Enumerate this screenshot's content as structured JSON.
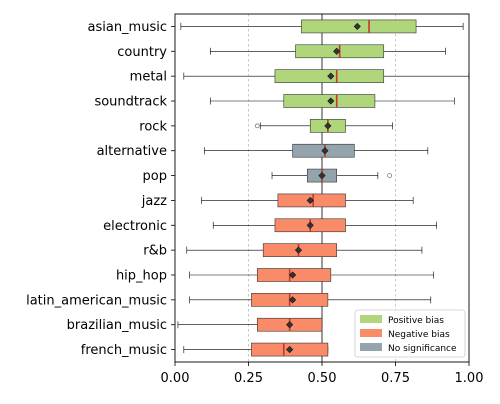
{
  "chart_data": {
    "type": "boxplot",
    "orientation": "horizontal",
    "categories": [
      "asian_music",
      "country",
      "metal",
      "soundtrack",
      "rock",
      "alternative",
      "pop",
      "jazz",
      "electronic",
      "r&b",
      "hip_hop",
      "latin_american_music",
      "brazilian_music",
      "french_music"
    ],
    "boxes": [
      {
        "category": "asian_music",
        "whisker_low": 0.02,
        "q1": 0.43,
        "median": 0.66,
        "q3": 0.82,
        "whisker_high": 0.98,
        "mean": 0.62,
        "group": "positive",
        "outliers": []
      },
      {
        "category": "country",
        "whisker_low": 0.12,
        "q1": 0.41,
        "median": 0.56,
        "q3": 0.71,
        "whisker_high": 0.92,
        "mean": 0.55,
        "group": "positive",
        "outliers": []
      },
      {
        "category": "metal",
        "whisker_low": 0.03,
        "q1": 0.34,
        "median": 0.55,
        "q3": 0.71,
        "whisker_high": 1.0,
        "mean": 0.53,
        "group": "positive",
        "outliers": []
      },
      {
        "category": "soundtrack",
        "whisker_low": 0.12,
        "q1": 0.37,
        "median": 0.55,
        "q3": 0.68,
        "whisker_high": 0.95,
        "mean": 0.53,
        "group": "positive",
        "outliers": []
      },
      {
        "category": "rock",
        "whisker_low": 0.29,
        "q1": 0.46,
        "median": 0.52,
        "q3": 0.58,
        "whisker_high": 0.74,
        "mean": 0.52,
        "group": "positive",
        "outliers": [
          0.28
        ]
      },
      {
        "category": "alternative",
        "whisker_low": 0.1,
        "q1": 0.4,
        "median": 0.51,
        "q3": 0.61,
        "whisker_high": 0.86,
        "mean": 0.51,
        "group": "none",
        "outliers": []
      },
      {
        "category": "pop",
        "whisker_low": 0.33,
        "q1": 0.45,
        "median": 0.5,
        "q3": 0.55,
        "whisker_high": 0.69,
        "mean": 0.5,
        "group": "none",
        "outliers": [
          0.73
        ]
      },
      {
        "category": "jazz",
        "whisker_low": 0.09,
        "q1": 0.35,
        "median": 0.47,
        "q3": 0.58,
        "whisker_high": 0.81,
        "mean": 0.46,
        "group": "negative",
        "outliers": []
      },
      {
        "category": "electronic",
        "whisker_low": 0.13,
        "q1": 0.34,
        "median": 0.46,
        "q3": 0.58,
        "whisker_high": 0.89,
        "mean": 0.46,
        "group": "negative",
        "outliers": []
      },
      {
        "category": "r&b",
        "whisker_low": 0.04,
        "q1": 0.3,
        "median": 0.42,
        "q3": 0.55,
        "whisker_high": 0.84,
        "mean": 0.42,
        "group": "negative",
        "outliers": []
      },
      {
        "category": "hip_hop",
        "whisker_low": 0.05,
        "q1": 0.28,
        "median": 0.39,
        "q3": 0.53,
        "whisker_high": 0.88,
        "mean": 0.4,
        "group": "negative",
        "outliers": []
      },
      {
        "category": "latin_american_music",
        "whisker_low": 0.05,
        "q1": 0.26,
        "median": 0.39,
        "q3": 0.52,
        "whisker_high": 0.87,
        "mean": 0.4,
        "group": "negative",
        "outliers": []
      },
      {
        "category": "brazilian_music",
        "whisker_low": 0.01,
        "q1": 0.28,
        "median": 0.39,
        "q3": 0.5,
        "whisker_high": 0.5,
        "mean": 0.39,
        "group": "negative",
        "outliers": []
      },
      {
        "category": "french_music",
        "whisker_low": 0.03,
        "q1": 0.26,
        "median": 0.37,
        "q3": 0.52,
        "whisker_high": 0.52,
        "mean": 0.39,
        "group": "negative",
        "outliers": []
      }
    ],
    "xlim": [
      0.0,
      1.0
    ],
    "xticks": [
      "0.00",
      "0.25",
      "0.50",
      "0.75",
      "1.00"
    ],
    "reference_line": 0.5,
    "vertical_grid": [
      0.25,
      0.75
    ],
    "legend": {
      "placement": "lower-right",
      "entries": [
        {
          "key": "positive",
          "label": "Positive bias",
          "color": "#b0d67c"
        },
        {
          "key": "negative",
          "label": "Negative bias",
          "color": "#f98b69"
        },
        {
          "key": "none",
          "label": "No significance",
          "color": "#95a3ad"
        }
      ]
    },
    "median_color": "#c0392b",
    "mean_marker": "diamond",
    "title": "",
    "xlabel": "",
    "ylabel": ""
  }
}
